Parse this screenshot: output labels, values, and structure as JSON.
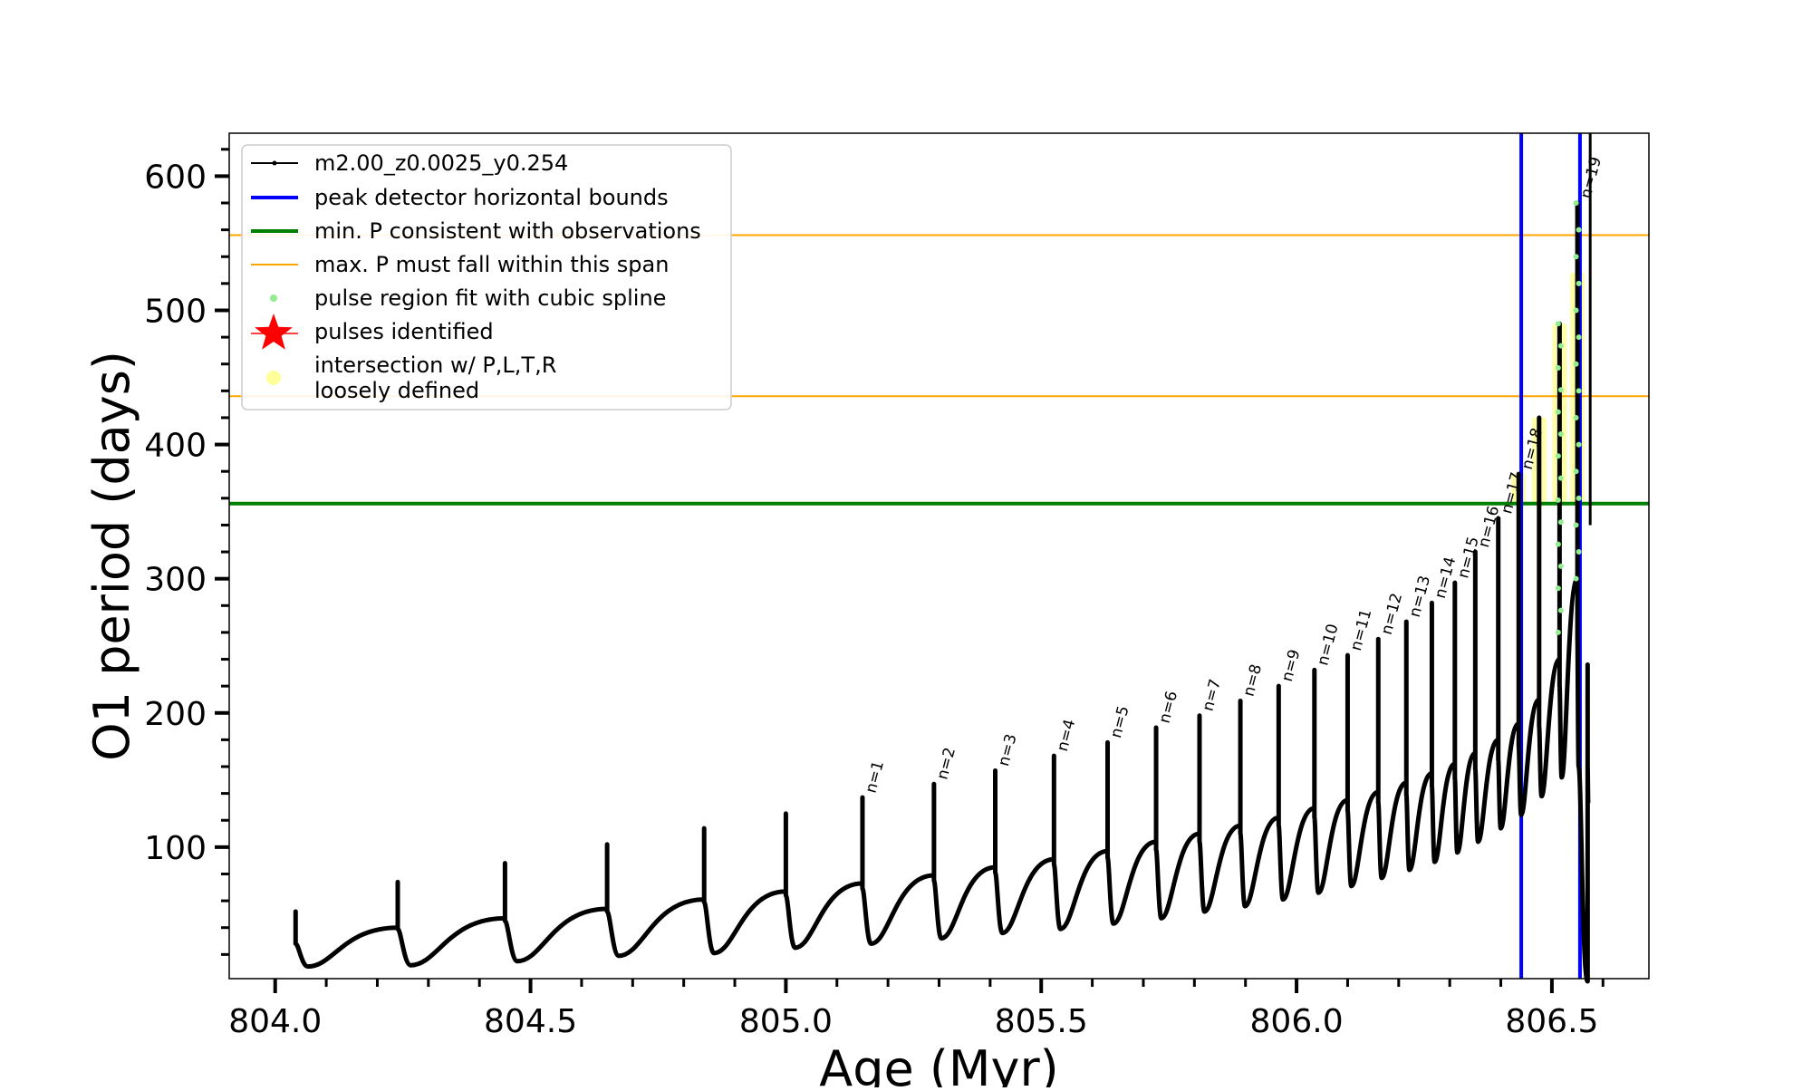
{
  "chart_data": {
    "type": "line",
    "title": "",
    "xlabel": "Age (Myr)",
    "ylabel": "O1 period (days)",
    "xlim": [
      803.91,
      806.69
    ],
    "ylim": [
      2,
      632
    ],
    "xticks": [
      804.0,
      804.5,
      805.0,
      805.5,
      806.0,
      806.5
    ],
    "xtick_labels": [
      "804.0",
      "804.5",
      "805.0",
      "805.5",
      "806.0",
      "806.5"
    ],
    "yticks": [
      100,
      200,
      300,
      400,
      500,
      600
    ],
    "ytick_labels": [
      "100",
      "200",
      "300",
      "400",
      "500",
      "600"
    ],
    "grid": false,
    "legend_position": "top-left",
    "colors": {
      "model": "#000000",
      "peak_bounds": "#0000ff",
      "min_period": "#008000",
      "max_span": "#ffa500",
      "spline": "#90ee90",
      "pulses": "#ff0000",
      "intersection": "#ffff99"
    },
    "legend": [
      {
        "label": "m2.00_z0.0025_y0.254",
        "marker": "line-dot",
        "color": "#000000"
      },
      {
        "label": "peak detector horizontal bounds",
        "marker": "thick-line",
        "color": "#0000ff"
      },
      {
        "label": "min. P consistent with observations",
        "marker": "thick-line",
        "color": "#008000"
      },
      {
        "label": "max. P must fall within this span",
        "marker": "thin-line",
        "color": "#ffa500"
      },
      {
        "label": "pulse region fit with cubic spline",
        "marker": "dot",
        "color": "#90ee90"
      },
      {
        "label": "pulses identified",
        "marker": "star",
        "color": "#ff0000"
      },
      {
        "label": "intersection w/ P,L,T,R",
        "label2": "loosely defined",
        "marker": "circle",
        "color": "#ffff99"
      }
    ],
    "hlines": {
      "min_period": 356,
      "max_span": [
        436,
        556
      ]
    },
    "vlines": {
      "peak_bounds": [
        806.44,
        806.555
      ]
    },
    "pulses": [
      {
        "age": 804.04,
        "peak": 52,
        "base": 28,
        "pre": null,
        "trough": 11,
        "n": null
      },
      {
        "age": 804.24,
        "peak": 74,
        "base": 39,
        "pre": 40,
        "trough": 12,
        "n": null
      },
      {
        "age": 804.45,
        "peak": 88,
        "base": 45,
        "pre": 47,
        "trough": 15,
        "n": null
      },
      {
        "age": 804.65,
        "peak": 102,
        "base": 52,
        "pre": 54,
        "trough": 19,
        "n": null
      },
      {
        "age": 804.84,
        "peak": 114,
        "base": 59,
        "pre": 61,
        "trough": 21,
        "n": null
      },
      {
        "age": 805.0,
        "peak": 125,
        "base": 64,
        "pre": 67,
        "trough": 25,
        "n": null
      },
      {
        "age": 805.15,
        "peak": 137,
        "base": 69,
        "pre": 73,
        "trough": 28,
        "n": "n=1"
      },
      {
        "age": 805.29,
        "peak": 147,
        "base": 75,
        "pre": 79,
        "trough": 32,
        "n": "n=2"
      },
      {
        "age": 805.41,
        "peak": 157,
        "base": 81,
        "pre": 85,
        "trough": 36,
        "n": "n=3"
      },
      {
        "age": 805.525,
        "peak": 168,
        "base": 87,
        "pre": 91,
        "trough": 39,
        "n": "n=4"
      },
      {
        "age": 805.63,
        "peak": 178,
        "base": 92,
        "pre": 97,
        "trough": 43,
        "n": "n=5"
      },
      {
        "age": 805.725,
        "peak": 189,
        "base": 98,
        "pre": 104,
        "trough": 47,
        "n": "n=6"
      },
      {
        "age": 805.81,
        "peak": 198,
        "base": 104,
        "pre": 110,
        "trough": 52,
        "n": "n=7"
      },
      {
        "age": 805.89,
        "peak": 209,
        "base": 110,
        "pre": 116,
        "trough": 56,
        "n": "n=8"
      },
      {
        "age": 805.965,
        "peak": 220,
        "base": 116,
        "pre": 122,
        "trough": 61,
        "n": "n=9"
      },
      {
        "age": 806.035,
        "peak": 232,
        "base": 122,
        "pre": 129,
        "trough": 66,
        "n": "n=10"
      },
      {
        "age": 806.1,
        "peak": 243,
        "base": 127,
        "pre": 135,
        "trough": 71,
        "n": "n=11"
      },
      {
        "age": 806.16,
        "peak": 255,
        "base": 133,
        "pre": 141,
        "trough": 77,
        "n": "n=12"
      },
      {
        "age": 806.215,
        "peak": 268,
        "base": 139,
        "pre": 148,
        "trough": 83,
        "n": "n=13"
      },
      {
        "age": 806.265,
        "peak": 282,
        "base": 145,
        "pre": 155,
        "trough": 89,
        "n": "n=14"
      },
      {
        "age": 806.31,
        "peak": 297,
        "base": 151,
        "pre": 162,
        "trough": 96,
        "n": "n=15"
      },
      {
        "age": 806.35,
        "peak": 320,
        "base": 158,
        "pre": 170,
        "trough": 104,
        "n": "n=16"
      },
      {
        "age": 806.395,
        "peak": 345,
        "base": 165,
        "pre": 180,
        "trough": 114,
        "n": "n=17"
      },
      {
        "age": 806.435,
        "peak": 378,
        "base": 175,
        "pre": 192,
        "trough": 124,
        "n": "n=18"
      },
      {
        "age": 806.475,
        "peak": 420,
        "base": 190,
        "pre": 210,
        "trough": 138,
        "n": null
      },
      {
        "age": 806.515,
        "peak": 490,
        "base": 220,
        "pre": 240,
        "trough": 152,
        "n": null
      },
      {
        "age": 806.55,
        "peak": 580,
        "base": 255,
        "pre": 300,
        "trough": 160,
        "n": "n=19"
      },
      {
        "age": 806.57,
        "peak": 236,
        "base": 160,
        "pre": null,
        "trough": 132,
        "n": null
      }
    ],
    "final_line": {
      "age": 806.575,
      "top": 632,
      "bottom": 340
    },
    "intersection_regions": [
      {
        "age": 806.435,
        "from": 356,
        "to": 378
      },
      {
        "age": 806.475,
        "from": 356,
        "to": 420
      },
      {
        "age": 806.515,
        "from": 356,
        "to": 490
      },
      {
        "age": 806.55,
        "from": 356,
        "to": 528
      }
    ],
    "spline_regions": [
      {
        "age": 806.515,
        "from": 260,
        "to": 490
      },
      {
        "age": 806.55,
        "from": 300,
        "to": 580
      }
    ]
  }
}
